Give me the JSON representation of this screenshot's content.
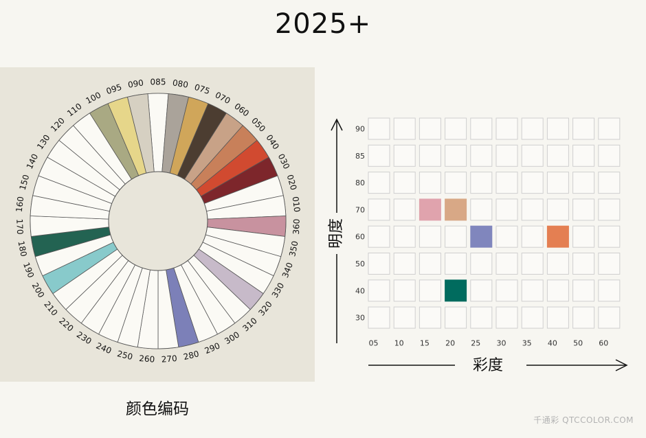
{
  "title": "2025+",
  "wheel": {
    "caption": "颜色编码",
    "labels": [
      "085",
      "080",
      "075",
      "070",
      "060",
      "050",
      "040",
      "030",
      "020",
      "010",
      "360",
      "350",
      "340",
      "330",
      "320",
      "310",
      "300",
      "290",
      "280",
      "270",
      "260",
      "250",
      "240",
      "230",
      "220",
      "210",
      "200",
      "190",
      "180",
      "170",
      "160",
      "150",
      "140",
      "130",
      "120",
      "110",
      "100",
      "095",
      "090"
    ],
    "highlighted": [
      {
        "code": "080",
        "color": "#aaa39a"
      },
      {
        "code": "075",
        "color": "#d0a65a"
      },
      {
        "code": "070",
        "color": "#4c3d31"
      },
      {
        "code": "060",
        "color": "#c8a287"
      },
      {
        "code": "050",
        "color": "#c8805a"
      },
      {
        "code": "040",
        "color": "#d14a30"
      },
      {
        "code": "030",
        "color": "#7d262b"
      },
      {
        "code": "360",
        "color": "#c8929f"
      },
      {
        "code": "320",
        "color": "#c7bac9"
      },
      {
        "code": "280",
        "color": "#7c80b8"
      },
      {
        "code": "200",
        "color": "#88cacb"
      },
      {
        "code": "180",
        "color": "#236352"
      },
      {
        "code": "100",
        "color": "#a9a983"
      },
      {
        "code": "095",
        "color": "#e6d68a"
      },
      {
        "code": "090",
        "color": "#d6d0c2"
      }
    ]
  },
  "chart_data": {
    "type": "scatter",
    "xlabel": "彩度",
    "ylabel": "明度",
    "x_ticks": [
      "05",
      "10",
      "15",
      "20",
      "25",
      "30",
      "35",
      "40",
      "50",
      "60"
    ],
    "y_ticks": [
      "90",
      "85",
      "80",
      "70",
      "60",
      "50",
      "40",
      "30"
    ],
    "cells": [
      {
        "x": "15",
        "y": "70",
        "color": "#e0a3ad"
      },
      {
        "x": "20",
        "y": "70",
        "color": "#d8a886"
      },
      {
        "x": "25",
        "y": "60",
        "color": "#8086bd"
      },
      {
        "x": "40",
        "y": "60",
        "color": "#e47f52"
      },
      {
        "x": "20",
        "y": "40",
        "color": "#006b5e"
      }
    ]
  },
  "watermark": "千通彩 QTCCOLOR.COM"
}
